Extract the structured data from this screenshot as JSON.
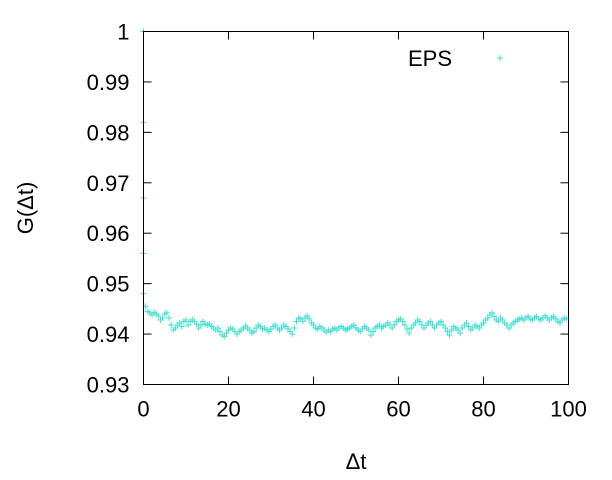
{
  "chart_data": {
    "type": "scatter",
    "title": "",
    "xlabel": "Δt",
    "ylabel": "G(Δt)",
    "xlim": [
      0,
      100
    ],
    "ylim": [
      0.93,
      1.0
    ],
    "xticks": [
      0,
      20,
      40,
      60,
      80,
      100
    ],
    "xtick_labels": [
      "0",
      "20",
      "40",
      "60",
      "80",
      "100"
    ],
    "yticks": [
      0.93,
      0.94,
      0.95,
      0.96,
      0.97,
      0.98,
      0.99,
      1.0
    ],
    "ytick_labels": [
      "0.93",
      "0.94",
      "0.95",
      "0.96",
      "0.97",
      "0.98",
      "0.99",
      "1"
    ],
    "grid": false,
    "legend_position": "top-right",
    "marker": "plus",
    "colors": {
      "series": "#40e0d0",
      "axis": "#000000"
    },
    "series": [
      {
        "name": "EPS",
        "points": [
          [
            0,
            1.0
          ],
          [
            0,
            0.982
          ],
          [
            0,
            0.967
          ],
          [
            0,
            0.956
          ],
          [
            0,
            0.948
          ],
          [
            0.5,
            0.9455
          ],
          [
            1,
            0.9445
          ],
          [
            1.5,
            0.9442
          ],
          [
            2,
            0.9438
          ],
          [
            2.5,
            0.9443
          ],
          [
            3,
            0.944
          ],
          [
            3.5,
            0.9436
          ],
          [
            4,
            0.9428
          ],
          [
            4.5,
            0.9432
          ],
          [
            5,
            0.944
          ],
          [
            5.5,
            0.9442
          ],
          [
            6,
            0.9432
          ],
          [
            6.5,
            0.9418
          ],
          [
            7,
            0.9408
          ],
          [
            7.5,
            0.9412
          ],
          [
            8,
            0.9418
          ],
          [
            8.5,
            0.9422
          ],
          [
            9,
            0.9415
          ],
          [
            9.5,
            0.9425
          ],
          [
            10,
            0.9428
          ],
          [
            10.5,
            0.9418
          ],
          [
            11,
            0.9425
          ],
          [
            11.5,
            0.9428
          ],
          [
            12,
            0.9425
          ],
          [
            12.5,
            0.942
          ],
          [
            13,
            0.9412
          ],
          [
            13.5,
            0.9418
          ],
          [
            14,
            0.9425
          ],
          [
            14.5,
            0.942
          ],
          [
            15,
            0.9418
          ],
          [
            15.5,
            0.942
          ],
          [
            16,
            0.9415
          ],
          [
            16.5,
            0.9412
          ],
          [
            17,
            0.9408
          ],
          [
            17.5,
            0.9412
          ],
          [
            18,
            0.9405
          ],
          [
            18.5,
            0.9398
          ],
          [
            19,
            0.9395
          ],
          [
            19.5,
            0.9402
          ],
          [
            20,
            0.9408
          ],
          [
            20.5,
            0.9412
          ],
          [
            21,
            0.941
          ],
          [
            21.5,
            0.9405
          ],
          [
            22,
            0.94
          ],
          [
            22.5,
            0.9405
          ],
          [
            23,
            0.9408
          ],
          [
            23.5,
            0.9412
          ],
          [
            24,
            0.9416
          ],
          [
            24.5,
            0.9412
          ],
          [
            25,
            0.9408
          ],
          [
            25.5,
            0.9402
          ],
          [
            26,
            0.9405
          ],
          [
            26.5,
            0.9412
          ],
          [
            27,
            0.9418
          ],
          [
            27.5,
            0.9415
          ],
          [
            28,
            0.941
          ],
          [
            28.5,
            0.9412
          ],
          [
            29,
            0.9408
          ],
          [
            29.5,
            0.9405
          ],
          [
            30,
            0.941
          ],
          [
            30.5,
            0.9415
          ],
          [
            31,
            0.9418
          ],
          [
            31.5,
            0.9412
          ],
          [
            32,
            0.9408
          ],
          [
            32.5,
            0.9412
          ],
          [
            33,
            0.9418
          ],
          [
            33.5,
            0.9415
          ],
          [
            34,
            0.941
          ],
          [
            34.5,
            0.9405
          ],
          [
            35,
            0.94
          ],
          [
            35.5,
            0.9412
          ],
          [
            36,
            0.9425
          ],
          [
            36.5,
            0.9432
          ],
          [
            37,
            0.943
          ],
          [
            37.5,
            0.9425
          ],
          [
            38,
            0.9432
          ],
          [
            38.5,
            0.9436
          ],
          [
            39,
            0.943
          ],
          [
            39.5,
            0.9422
          ],
          [
            40,
            0.9418
          ],
          [
            40.5,
            0.9412
          ],
          [
            41,
            0.941
          ],
          [
            41.5,
            0.9415
          ],
          [
            42,
            0.9412
          ],
          [
            42.5,
            0.9408
          ],
          [
            43,
            0.9404
          ],
          [
            43.5,
            0.9408
          ],
          [
            44,
            0.9405
          ],
          [
            44.5,
            0.941
          ],
          [
            45,
            0.9412
          ],
          [
            45.5,
            0.9408
          ],
          [
            46,
            0.9412
          ],
          [
            46.5,
            0.9415
          ],
          [
            47,
            0.9412
          ],
          [
            47.5,
            0.9408
          ],
          [
            48,
            0.941
          ],
          [
            48.5,
            0.9412
          ],
          [
            49,
            0.9415
          ],
          [
            49.5,
            0.9418
          ],
          [
            50,
            0.9412
          ],
          [
            50.5,
            0.9408
          ],
          [
            51,
            0.9405
          ],
          [
            51.5,
            0.941
          ],
          [
            52,
            0.9415
          ],
          [
            52.5,
            0.9412
          ],
          [
            53,
            0.9408
          ],
          [
            53.5,
            0.9398
          ],
          [
            54,
            0.9405
          ],
          [
            54.5,
            0.9412
          ],
          [
            55,
            0.9415
          ],
          [
            55.5,
            0.9418
          ],
          [
            56,
            0.9412
          ],
          [
            56.5,
            0.9415
          ],
          [
            57,
            0.9418
          ],
          [
            57.5,
            0.9422
          ],
          [
            58,
            0.9418
          ],
          [
            58.5,
            0.9412
          ],
          [
            59,
            0.9418
          ],
          [
            59.5,
            0.9425
          ],
          [
            60,
            0.9428
          ],
          [
            60.5,
            0.943
          ],
          [
            61,
            0.9425
          ],
          [
            61.5,
            0.9418
          ],
          [
            62,
            0.941
          ],
          [
            62.5,
            0.9402
          ],
          [
            63,
            0.9412
          ],
          [
            63.5,
            0.9418
          ],
          [
            64,
            0.9422
          ],
          [
            64.5,
            0.9428
          ],
          [
            65,
            0.9425
          ],
          [
            65.5,
            0.9418
          ],
          [
            66,
            0.9412
          ],
          [
            66.5,
            0.9418
          ],
          [
            67,
            0.9422
          ],
          [
            67.5,
            0.9425
          ],
          [
            68,
            0.9418
          ],
          [
            68.5,
            0.9412
          ],
          [
            69,
            0.9418
          ],
          [
            69.5,
            0.9422
          ],
          [
            70,
            0.9425
          ],
          [
            70.5,
            0.9418
          ],
          [
            71,
            0.9412
          ],
          [
            71.5,
            0.9405
          ],
          [
            72,
            0.9398
          ],
          [
            72.5,
            0.9408
          ],
          [
            73,
            0.9415
          ],
          [
            73.5,
            0.9412
          ],
          [
            74,
            0.9408
          ],
          [
            74.5,
            0.9402
          ],
          [
            75,
            0.9412
          ],
          [
            75.5,
            0.9418
          ],
          [
            76,
            0.9422
          ],
          [
            76.5,
            0.9415
          ],
          [
            77,
            0.9408
          ],
          [
            77.5,
            0.9412
          ],
          [
            78,
            0.9418
          ],
          [
            78.5,
            0.9415
          ],
          [
            79,
            0.9412
          ],
          [
            79.5,
            0.9418
          ],
          [
            80,
            0.9422
          ],
          [
            80.5,
            0.9428
          ],
          [
            81,
            0.9432
          ],
          [
            81.5,
            0.9438
          ],
          [
            82,
            0.9442
          ],
          [
            82.5,
            0.9435
          ],
          [
            83,
            0.9428
          ],
          [
            83.5,
            0.9425
          ],
          [
            84,
            0.9432
          ],
          [
            84.5,
            0.9428
          ],
          [
            85,
            0.9422
          ],
          [
            85.5,
            0.9418
          ],
          [
            86,
            0.9412
          ],
          [
            86.5,
            0.9418
          ],
          [
            87,
            0.9422
          ],
          [
            87.5,
            0.9425
          ],
          [
            88,
            0.9428
          ],
          [
            88.5,
            0.943
          ],
          [
            89,
            0.9432
          ],
          [
            89.5,
            0.9428
          ],
          [
            90,
            0.9432
          ],
          [
            90.5,
            0.9435
          ],
          [
            91,
            0.943
          ],
          [
            91.5,
            0.9428
          ],
          [
            92,
            0.9432
          ],
          [
            92.5,
            0.9435
          ],
          [
            93,
            0.943
          ],
          [
            93.5,
            0.9428
          ],
          [
            94,
            0.9432
          ],
          [
            94.5,
            0.9436
          ],
          [
            95,
            0.9432
          ],
          [
            95.5,
            0.9428
          ],
          [
            96,
            0.9432
          ],
          [
            96.5,
            0.9435
          ],
          [
            97,
            0.943
          ],
          [
            97.5,
            0.9425
          ],
          [
            98,
            0.9422
          ],
          [
            98.5,
            0.9428
          ],
          [
            99,
            0.9432
          ],
          [
            99.5,
            0.943
          ]
        ]
      }
    ]
  }
}
